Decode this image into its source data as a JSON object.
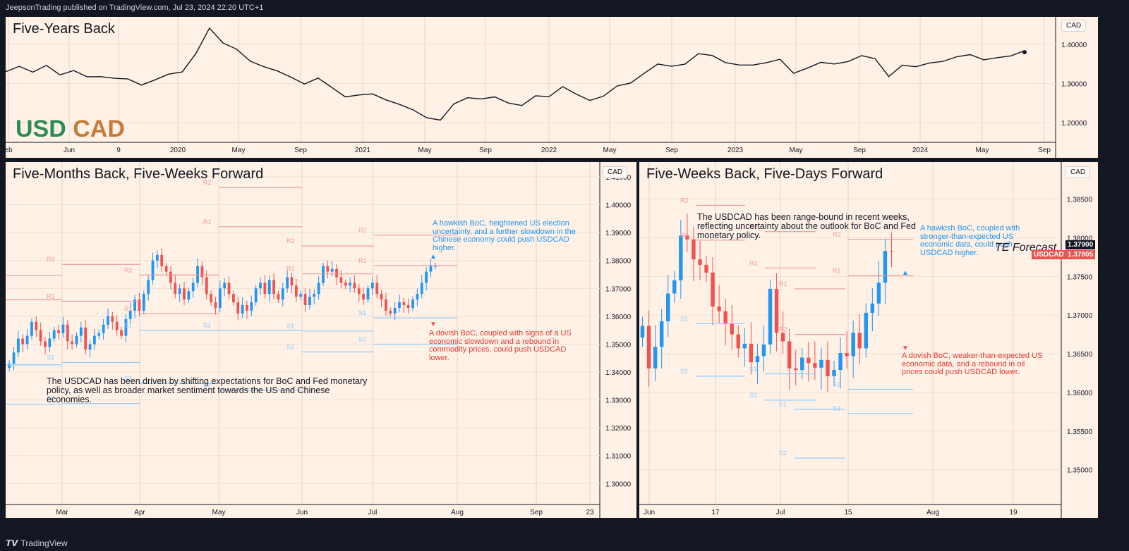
{
  "header": {
    "published": "JeepsonTrading published on TradingView.com, Jul 23, 2024 22:20 UTC+1"
  },
  "footer": {
    "brand": "TradingView"
  },
  "colors": {
    "up": "#2196f3",
    "down": "#ef5350",
    "line": "#131722",
    "r_level": "#ef9a9a",
    "s_level": "#90caf9"
  },
  "top": {
    "title": "Five-Years Back",
    "usd": "USD",
    "cad": "CAD",
    "currency": "CAD",
    "chart_data": {
      "type": "line",
      "title": "Five-Years Back",
      "series_name": "USDCAD",
      "x_start": "2019-02",
      "x_end": "2024-07-23",
      "ylim": [
        1.15,
        1.47
      ],
      "y_ticks": [
        "1.40000",
        "1.30000",
        "1.20000"
      ],
      "x_ticks": [
        "eb",
        "Jun",
        "9",
        "2020",
        "May",
        "Sep",
        "2021",
        "May",
        "Sep",
        "2022",
        "May",
        "Sep",
        "2023",
        "May",
        "Sep",
        "2024",
        "May",
        "Sep"
      ],
      "values": [
        1.33,
        1.34,
        1.33,
        1.35,
        1.32,
        1.33,
        1.32,
        1.32,
        1.31,
        1.31,
        1.3,
        1.31,
        1.32,
        1.33,
        1.38,
        1.44,
        1.4,
        1.39,
        1.36,
        1.34,
        1.33,
        1.32,
        1.3,
        1.31,
        1.29,
        1.27,
        1.27,
        1.27,
        1.26,
        1.25,
        1.23,
        1.21,
        1.21,
        1.25,
        1.26,
        1.26,
        1.27,
        1.25,
        1.24,
        1.27,
        1.27,
        1.29,
        1.27,
        1.26,
        1.27,
        1.29,
        1.3,
        1.33,
        1.35,
        1.34,
        1.35,
        1.38,
        1.37,
        1.35,
        1.35,
        1.35,
        1.35,
        1.36,
        1.33,
        1.34,
        1.35,
        1.35,
        1.36,
        1.37,
        1.36,
        1.32,
        1.35,
        1.34,
        1.35,
        1.36,
        1.37,
        1.37,
        1.36,
        1.37,
        1.37,
        1.38
      ]
    }
  },
  "left": {
    "title": "Five-Months Back, Five-Weeks Forward",
    "currency": "CAD",
    "note_blue": "A hawkish BoC, heightened US election uncertainty, and a further slowdown in the Chinese economy could push USDCAD higher.",
    "note_red": "A dovish BoC, coupled with signs of a US economic slowdown and a rebound in commodity prices, could push USDCAD lower.",
    "note_black": "The USDCAD has been driven by shifting expectations for BoC and Fed monetary policy, as well as broader market sentiment towards the US and Chinese economies.",
    "chart_data": {
      "type": "candlestick",
      "title": "Five-Months Back, Five-Weeks Forward",
      "ylim": [
        1.2925,
        1.4153
      ],
      "y_ticks": [
        "1.41000",
        "1.40000",
        "1.39000",
        "1.38000",
        "1.37000",
        "1.36000",
        "1.35000",
        "1.34000",
        "1.33000",
        "1.32000",
        "1.31000",
        "1.30000"
      ],
      "x_ticks": [
        "Mar",
        "Apr",
        "May",
        "Jun",
        "Jul",
        "Aug",
        "Sep",
        "23"
      ],
      "closes": [
        1.343,
        1.347,
        1.352,
        1.35,
        1.353,
        1.358,
        1.355,
        1.351,
        1.349,
        1.352,
        1.355,
        1.354,
        1.357,
        1.351,
        1.35,
        1.353,
        1.356,
        1.348,
        1.35,
        1.353,
        1.354,
        1.357,
        1.36,
        1.358,
        1.355,
        1.353,
        1.359,
        1.362,
        1.366,
        1.362,
        1.368,
        1.373,
        1.38,
        1.382,
        1.378,
        1.376,
        1.372,
        1.368,
        1.37,
        1.366,
        1.369,
        1.372,
        1.378,
        1.374,
        1.368,
        1.365,
        1.363,
        1.37,
        1.372,
        1.368,
        1.365,
        1.361,
        1.364,
        1.362,
        1.365,
        1.37,
        1.372,
        1.368,
        1.373,
        1.368,
        1.366,
        1.37,
        1.374,
        1.371,
        1.367,
        1.368,
        1.364,
        1.367,
        1.368,
        1.372,
        1.378,
        1.376,
        1.377,
        1.374,
        1.372,
        1.371,
        1.372,
        1.37,
        1.368,
        1.366,
        1.37,
        1.372,
        1.368,
        1.366,
        1.362,
        1.361,
        1.363,
        1.365,
        1.364,
        1.363,
        1.366,
        1.368,
        1.372,
        1.376,
        1.378,
        1.378
      ],
      "pivots": [
        {
          "label": "R2",
          "value": 1.3747
        },
        {
          "label": "R1",
          "value": 1.3659
        },
        {
          "label": "S1",
          "value": 1.3426
        },
        {
          "label": "S2",
          "value": 1.3284
        },
        {
          "label": "R2",
          "value": 1.3786
        },
        {
          "label": "R1",
          "value": 1.3654
        },
        {
          "label": "S1",
          "value": 1.3434
        },
        {
          "label": "S2",
          "value": 1.3287
        },
        {
          "label": "R2",
          "value": 1.3748
        },
        {
          "label": "R1",
          "value": 1.3609
        },
        {
          "label": "S1",
          "value": 1.355
        },
        {
          "label": "S2",
          "value": 1.3359
        },
        {
          "label": "R2",
          "value": 1.4062
        },
        {
          "label": "R1",
          "value": 1.3921
        },
        {
          "label": "S1",
          "value": 1.355
        },
        {
          "label": "S2",
          "value": 1.3335
        },
        {
          "label": "R2",
          "value": 1.3852
        },
        {
          "label": "R1",
          "value": 1.3752
        },
        {
          "label": "S1",
          "value": 1.3547
        },
        {
          "label": "S2",
          "value": 1.3472
        },
        {
          "label": "R2",
          "value": 1.3891
        },
        {
          "label": "R1",
          "value": 1.3782
        },
        {
          "label": "S1",
          "value": 1.3594
        },
        {
          "label": "S2",
          "value": 1.35
        }
      ],
      "forecast_up": "▲",
      "forecast_down": "▼"
    }
  },
  "right": {
    "title": "Five-Weeks Back, Five-Days Forward",
    "currency": "CAD",
    "note_black": "The USDCAD has been range-bound in recent weeks, reflecting uncertainty about the outlook for BoC and Fed monetary policy.",
    "note_blue": "A hawkish BoC, coupled with stronger-than-expected US economic data, could push USDCAD higher.",
    "note_red": "A dovish BoC, weaker-than-expected US economic data, and a rebound in oil prices could push USDCAD lower.",
    "te_forecast": "TE Forecast",
    "price_label": "1.37900",
    "symbol_label": "USDCAD",
    "symbol_price": "1.37805",
    "chart_data": {
      "type": "candlestick",
      "title": "Five-Weeks Back, Five-Days Forward",
      "ylim": [
        1.3455,
        1.3898
      ],
      "y_ticks": [
        "1.38500",
        "1.38000",
        "1.37500",
        "1.37000",
        "1.36500",
        "1.36000",
        "1.35500",
        "1.35000"
      ],
      "x_ticks": [
        "Jun",
        "17",
        "Jul",
        "15",
        "Aug",
        "19"
      ],
      "closes": [
        1.3686,
        1.3631,
        1.3659,
        1.3692,
        1.3728,
        1.3745,
        1.3803,
        1.3798,
        1.3772,
        1.3765,
        1.3755,
        1.3711,
        1.3705,
        1.3689,
        1.3675,
        1.3657,
        1.3663,
        1.3639,
        1.3647,
        1.3662,
        1.3734,
        1.3677,
        1.3666,
        1.3631,
        1.3629,
        1.3645,
        1.3638,
        1.3632,
        1.3642,
        1.3621,
        1.3629,
        1.3651,
        1.3647,
        1.3677,
        1.3657,
        1.3703,
        1.3715,
        1.3742,
        1.3783,
        1.3782
      ],
      "pivots": [
        {
          "label": "R2",
          "value": 1.3842
        },
        {
          "label": "R1",
          "value": 1.3797
        },
        {
          "label": "S1",
          "value": 1.3689
        },
        {
          "label": "S2",
          "value": 1.3621
        },
        {
          "label": "R2",
          "value": 1.3808
        },
        {
          "label": "R1",
          "value": 1.3761
        },
        {
          "label": "S1",
          "value": 1.3624
        },
        {
          "label": "S2",
          "value": 1.359
        },
        {
          "label": "R2",
          "value": 1.3675
        },
        {
          "label": "R1",
          "value": 1.3734
        },
        {
          "label": "S1",
          "value": 1.3578
        },
        {
          "label": "S2",
          "value": 1.3515
        },
        {
          "label": "R2",
          "value": 1.3798
        },
        {
          "label": "R1",
          "value": 1.3751
        },
        {
          "label": "S1",
          "value": 1.3604
        },
        {
          "label": "S2",
          "value": 1.3573
        }
      ],
      "forecast_up": "▲",
      "forecast_down": "▼"
    }
  }
}
